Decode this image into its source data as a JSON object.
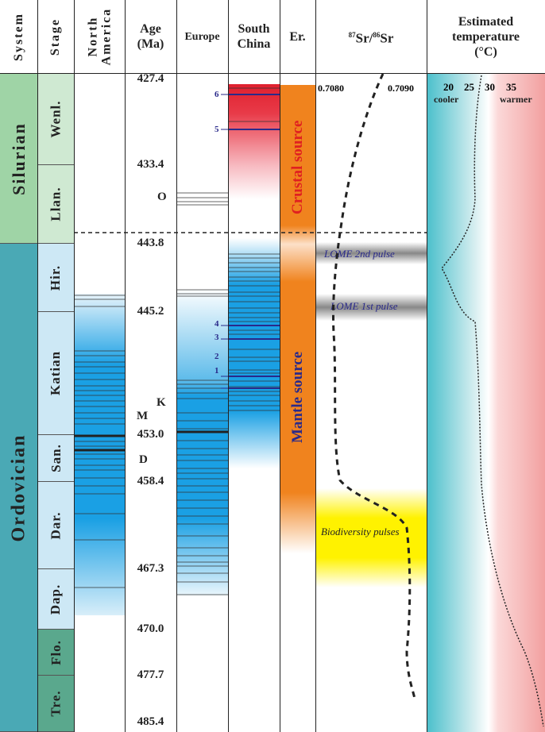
{
  "header": {
    "system": "System",
    "stage": "Stage",
    "north_america": "North America",
    "age": "Age (Ma)",
    "europe": "Europe",
    "south_china": "South China",
    "er": "Er.",
    "sr": "87Sr/86Sr",
    "sr_sup1": "87",
    "sr_main1": "Sr/",
    "sr_sup2": "86",
    "sr_main2": "Sr",
    "temperature": "Estimated temperature",
    "temp_unit": "(°C)"
  },
  "systems": [
    {
      "label": "Silurian",
      "color": "#9fd4a6"
    },
    {
      "label": "Ordovician",
      "color": "#4aa9b5"
    }
  ],
  "stages": [
    {
      "label": "Wenl."
    },
    {
      "label": "Llan."
    },
    {
      "label": "Hir."
    },
    {
      "label": "Katian"
    },
    {
      "label": "San."
    },
    {
      "label": "Dar."
    },
    {
      "label": "Dap."
    },
    {
      "label": "Flo."
    },
    {
      "label": "Tre."
    }
  ],
  "ages": [
    "427.4",
    "433.4",
    "443.8",
    "445.2",
    "453.0",
    "458.4",
    "467.3",
    "470.0",
    "477.7",
    "485.4"
  ],
  "bed_labels": {
    "M": "M",
    "D": "D",
    "K": "K",
    "O": "O",
    "n1": "1",
    "n2": "2",
    "n3": "3",
    "n4": "4",
    "n5": "5",
    "n6": "6"
  },
  "er": {
    "crustal": "Crustal source",
    "mantle": "Mantle source",
    "crustal_color": "#e02020",
    "mantle_color": "#2a2a8a",
    "bar_color": "#f0831e"
  },
  "sr_axis": {
    "ticks": [
      "0.7080",
      "0.7090"
    ]
  },
  "temp_axis": {
    "ticks": [
      "20",
      "25",
      "30",
      "35"
    ],
    "cooler": "cooler",
    "warmer": "warmer"
  },
  "events": {
    "lome2": "LOME  2nd pulse",
    "lome1": "LOME 1st pulse",
    "biodiversity": "Biodiversity pulses"
  }
}
